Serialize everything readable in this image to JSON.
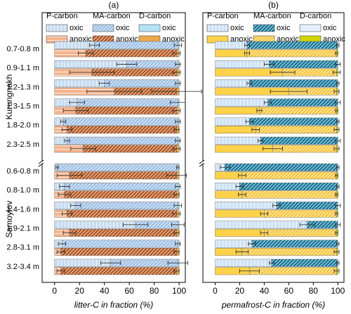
{
  "chart_data": [
    {
      "type": "bar",
      "orientation": "horizontal",
      "stacked": true,
      "label": "(a)",
      "xlabel": "litter-C in fraction (%)",
      "xlim": [
        -10,
        105
      ],
      "xticks": [
        0,
        20,
        40,
        60,
        80,
        100
      ],
      "groups": [
        {
          "name": "Kurungnakh",
          "categories": [
            "0.7-0.8 m",
            "0.9-1.1 m",
            "1.2-1.3 m",
            "1.3-1.5 m",
            "1.8-2.0 m",
            "2.3-2.5 m"
          ]
        },
        {
          "name": "Samoylov",
          "categories": [
            "0.6-0.8 m",
            "0.8-1.0 m",
            "1.4-1.6 m",
            "1.9-2.1 m",
            "2.8-3.1 m",
            "3.2-3.4 m"
          ]
        }
      ],
      "conditions": [
        "oxic",
        "anoxic"
      ],
      "components": [
        {
          "name": "P-carbon",
          "bars": [
            {
              "color": "#c9ddf1",
              "hatch": "vertical",
              "values": [
                [
                  32,
                  58,
                  40,
                  18,
                  7,
                  10
                ],
                [
                  2,
                  8,
                  17,
                  65,
                  6,
                  45
                ]
              ],
              "errors": [
                [
                  4,
                  8,
                  4,
                  6,
                  2,
                  2
                ],
                [
                  1,
                  4,
                  4,
                  10,
                  3,
                  8
                ]
              ]
            },
            {
              "color": "#f5b48c",
              "hatch": "horizontal",
              "values": [
                [
                  25,
                  30,
                  48,
                  17,
                  10,
                  23
                ],
                [
                  12,
                  8,
                  10,
                  12,
                  5,
                  5
                ]
              ],
              "errors": [
                [
                  6,
                  18,
                  22,
                  10,
                  4,
                  10
                ],
                [
                  10,
                  5,
                  4,
                  5,
                  3,
                  3
                ]
              ]
            }
          ]
        },
        {
          "name": "MA-carbon",
          "bars": [
            {
              "color": "#9fc1e6",
              "hatch": "diagonal",
              "values": [
                [
                  67,
                  41,
                  59,
                  81,
                  92,
                  89
                ],
                [
                  97,
                  91,
                  82,
                  34,
                  93,
                  54
                ]
              ],
              "errors": [
                [
                  3,
                  2,
                  2,
                  6,
                  2,
                  2
                ],
                [
                  1,
                  2,
                  3,
                  5,
                  2,
                  8
                ]
              ]
            },
            {
              "color": "#b4561e",
              "hatch": "diagonal",
              "values": [
                [
                  73,
                  68,
                  50,
                  81,
                  88,
                  75
                ],
                [
                  86,
                  90,
                  88,
                  86,
                  93,
                  93
                ]
              ],
              "errors": [
                [
                  3,
                  3,
                  20,
                  3,
                  2,
                  3
                ],
                [
                  8,
                  2,
                  3,
                  2,
                  2,
                  2
                ]
              ]
            }
          ]
        },
        {
          "name": "D-carbon",
          "bars": [
            {
              "color": "#b3e2f5",
              "hatch": "none",
              "values": [
                [
                  1,
                  1,
                  1,
                  1,
                  1,
                  1
                ],
                [
                  1,
                  1,
                  1,
                  1,
                  1,
                  1
                ]
              ]
            },
            {
              "color": "#e9a94c",
              "hatch": "none",
              "values": [
                [
                  2,
                  2,
                  2,
                  2,
                  2,
                  2
                ],
                [
                  2,
                  2,
                  2,
                  2,
                  2,
                  2
                ]
              ]
            }
          ]
        }
      ]
    },
    {
      "type": "bar",
      "orientation": "horizontal",
      "stacked": true,
      "label": "(b)",
      "xlabel": "permafrost-C in fraction (%)",
      "xlim": [
        -10,
        105
      ],
      "xticks": [
        0,
        20,
        40,
        60,
        80,
        100
      ],
      "conditions": [
        "oxic",
        "anoxic"
      ],
      "components": [
        {
          "name": "P-carbon",
          "bars": [
            {
              "color": "#cfe3f6",
              "hatch": "vertical",
              "values": [
                [
                  26,
                  44,
                  28,
                  43,
                  28,
                  37
                ],
                [
                  8,
                  20,
                  50,
                  75,
                  30,
                  46
                ]
              ],
              "errors": [
                [
                  2,
                  4,
                  2,
                  3,
                  3,
                  2
                ],
                [
                  4,
                  3,
                  3,
                  6,
                  3,
                  2
                ]
              ]
            },
            {
              "color": "#ffd24a",
              "hatch": "none",
              "values": [
                [
                  26,
                  55,
                  60,
                  36,
                  33,
                  47
                ],
                [
                  22,
                  22,
                  40,
                  40,
                  22,
                  28
                ]
              ],
              "errors": [
                [
                  2,
                  10,
                  15,
                  2,
                  3,
                  8
                ],
                [
                  3,
                  3,
                  3,
                  3,
                  5,
                  8
                ]
              ]
            }
          ]
        },
        {
          "name": "MA-carbon",
          "bars": [
            {
              "color": "#15779a",
              "hatch": "diagonal",
              "values": [
                [
                  74,
                  56,
                  72,
                  57,
                  72,
                  63
                ],
                [
                  92,
                  80,
                  50,
                  25,
                  70,
                  54
                ]
              ],
              "errors": [
                [
                  1,
                  2,
                  1,
                  2,
                  1,
                  2
                ],
                [
                  1,
                  1,
                  2,
                  2,
                  1,
                  1
                ]
              ]
            },
            {
              "color": "#f8c63c",
              "hatch": "diagonal",
              "values": [
                [
                  73,
                  44,
                  39,
                  63,
                  66,
                  52
                ],
                [
                  77,
                  77,
                  59,
                  59,
                  77,
                  71
                ]
              ],
              "errors": [
                [
                  1,
                  3,
                  2,
                  1,
                  2,
                  2
                ],
                [
                  1,
                  1,
                  1,
                  1,
                  2,
                  2
                ]
              ]
            }
          ]
        },
        {
          "name": "D-carbon",
          "bars": [
            {
              "color": "#e2f1fb",
              "hatch": "none",
              "values": [
                [
                  0,
                  0,
                  0,
                  0,
                  0,
                  0
                ],
                [
                  0,
                  0,
                  0,
                  0,
                  0,
                  0
                ]
              ]
            },
            {
              "color": "#d2d200",
              "hatch": "none",
              "values": [
                [
                  1,
                  1,
                  1,
                  1,
                  1,
                  1
                ],
                [
                  1,
                  1,
                  1,
                  1,
                  1,
                  1
                ]
              ]
            }
          ]
        }
      ]
    }
  ]
}
